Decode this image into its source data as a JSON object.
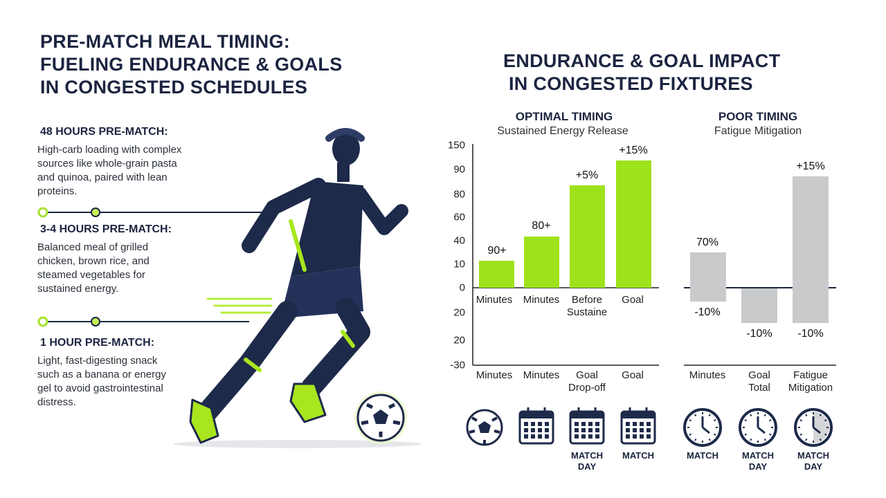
{
  "header": {
    "title_lines": [
      "PRE-MATCH MEAL TIMING:",
      "FUELING ENDURANCE & GOALS",
      "IN CONGESTED SCHEDULES"
    ]
  },
  "timeline": [
    {
      "heading": "48 HOURS PRE-MATCH:",
      "text_lines": [
        "High-carb loading with complex",
        "sources like whole-grain pasta",
        "and quinoa, paired with lean",
        "proteins."
      ]
    },
    {
      "heading": "3-4 HOURS PRE-MATCH:",
      "text_lines": [
        "Balanced meal of grilled",
        "chicken, brown rice, and",
        "steamed vegetables for",
        "sustained energy."
      ]
    },
    {
      "heading": "1 HOUR PRE-MATCH:",
      "text_lines": [
        "Light, fast-digesting snack",
        "such as a banana or energy",
        "gel to avoid gastrointestinal",
        "distress."
      ]
    }
  ],
  "impact": {
    "title_lines": [
      "ENDURANCE & GOAL IMPACT",
      "IN CONGESTED FIXTURES"
    ],
    "optimal": {
      "heading": "OPTIMAL TIMING",
      "subheading": "Sustained Energy Release",
      "axis_labels": [
        "150",
        "90",
        "80",
        "60",
        "40",
        "10",
        "0",
        "20",
        "20",
        "-30"
      ],
      "bar_labels": [
        "90+",
        "80+",
        "+5%",
        "+15%"
      ],
      "upper_categories": [
        [
          "Minutes"
        ],
        [
          "Minutes"
        ],
        [
          "Before",
          "Sustaine"
        ],
        [
          "Goal"
        ]
      ],
      "lower_categories": [
        [
          "Minutes"
        ],
        [
          "Minutes"
        ],
        [
          "Goal",
          "Drop-off"
        ],
        [
          "Goal"
        ]
      ]
    },
    "poor": {
      "heading": "POOR TIMING",
      "subheading": "Fatigue Mitigation",
      "bar_labels_top": [
        "70%",
        null,
        "+15%"
      ],
      "bar_labels_bottom": [
        "-10%",
        "-10%",
        "-10%"
      ],
      "categories": [
        [
          "Minutes"
        ],
        [
          "Goal",
          "Total"
        ],
        [
          "Fatigue",
          "Mitigation"
        ]
      ]
    },
    "icon_labels": [
      null,
      null,
      [
        "MATCH",
        "DAY"
      ],
      [
        "MATCH"
      ],
      [
        "MATCH"
      ],
      [
        "MATCH",
        "DAY"
      ],
      [
        "MATCH",
        "DAY"
      ]
    ]
  }
}
